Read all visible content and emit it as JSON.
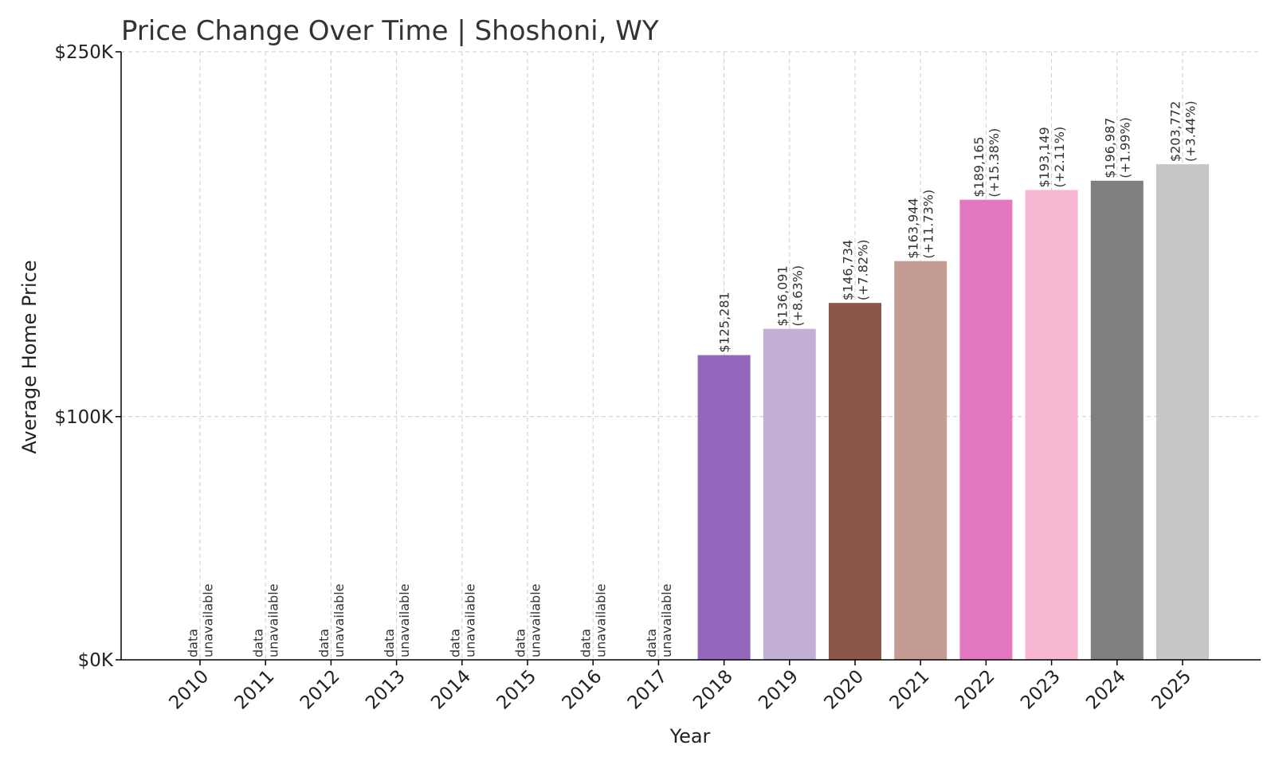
{
  "chart_data": {
    "type": "bar",
    "title": "Price Change Over Time | Shoshoni, WY",
    "xlabel": "Year",
    "ylabel": "Average Home Price",
    "ylim": [
      0,
      250000
    ],
    "yticks": [
      {
        "value": 0,
        "label": "$0K"
      },
      {
        "value": 100000,
        "label": "$100K"
      },
      {
        "value": 250000,
        "label": "$250K"
      }
    ],
    "grid": true,
    "categories": [
      "2010",
      "2011",
      "2012",
      "2013",
      "2014",
      "2015",
      "2016",
      "2017",
      "2018",
      "2019",
      "2020",
      "2021",
      "2022",
      "2023",
      "2024",
      "2025"
    ],
    "values": [
      null,
      null,
      null,
      null,
      null,
      null,
      null,
      null,
      125281,
      136091,
      146734,
      163944,
      189165,
      193149,
      196987,
      203772
    ],
    "labels": [
      [
        "data",
        "unavailable"
      ],
      [
        "data",
        "unavailable"
      ],
      [
        "data",
        "unavailable"
      ],
      [
        "data",
        "unavailable"
      ],
      [
        "data",
        "unavailable"
      ],
      [
        "data",
        "unavailable"
      ],
      [
        "data",
        "unavailable"
      ],
      [
        "data",
        "unavailable"
      ],
      [
        "$125,281"
      ],
      [
        "$136,091",
        "(+8.63%)"
      ],
      [
        "$146,734",
        "(+7.82%)"
      ],
      [
        "$163,944",
        "(+11.73%)"
      ],
      [
        "$189,165",
        "(+15.38%)"
      ],
      [
        "$193,149",
        "(+2.11%)"
      ],
      [
        "$196,987",
        "(+1.99%)"
      ],
      [
        "$203,772",
        "(+3.44%)"
      ]
    ],
    "colors": [
      "#9467bd",
      "#9467bd",
      "#9467bd",
      "#9467bd",
      "#9467bd",
      "#9467bd",
      "#9467bd",
      "#9467bd",
      "#9467bd",
      "#c5b0d5",
      "#8c564b",
      "#c49c94",
      "#e377c2",
      "#f7b6d2",
      "#7f7f7f",
      "#c7c7c7"
    ]
  }
}
